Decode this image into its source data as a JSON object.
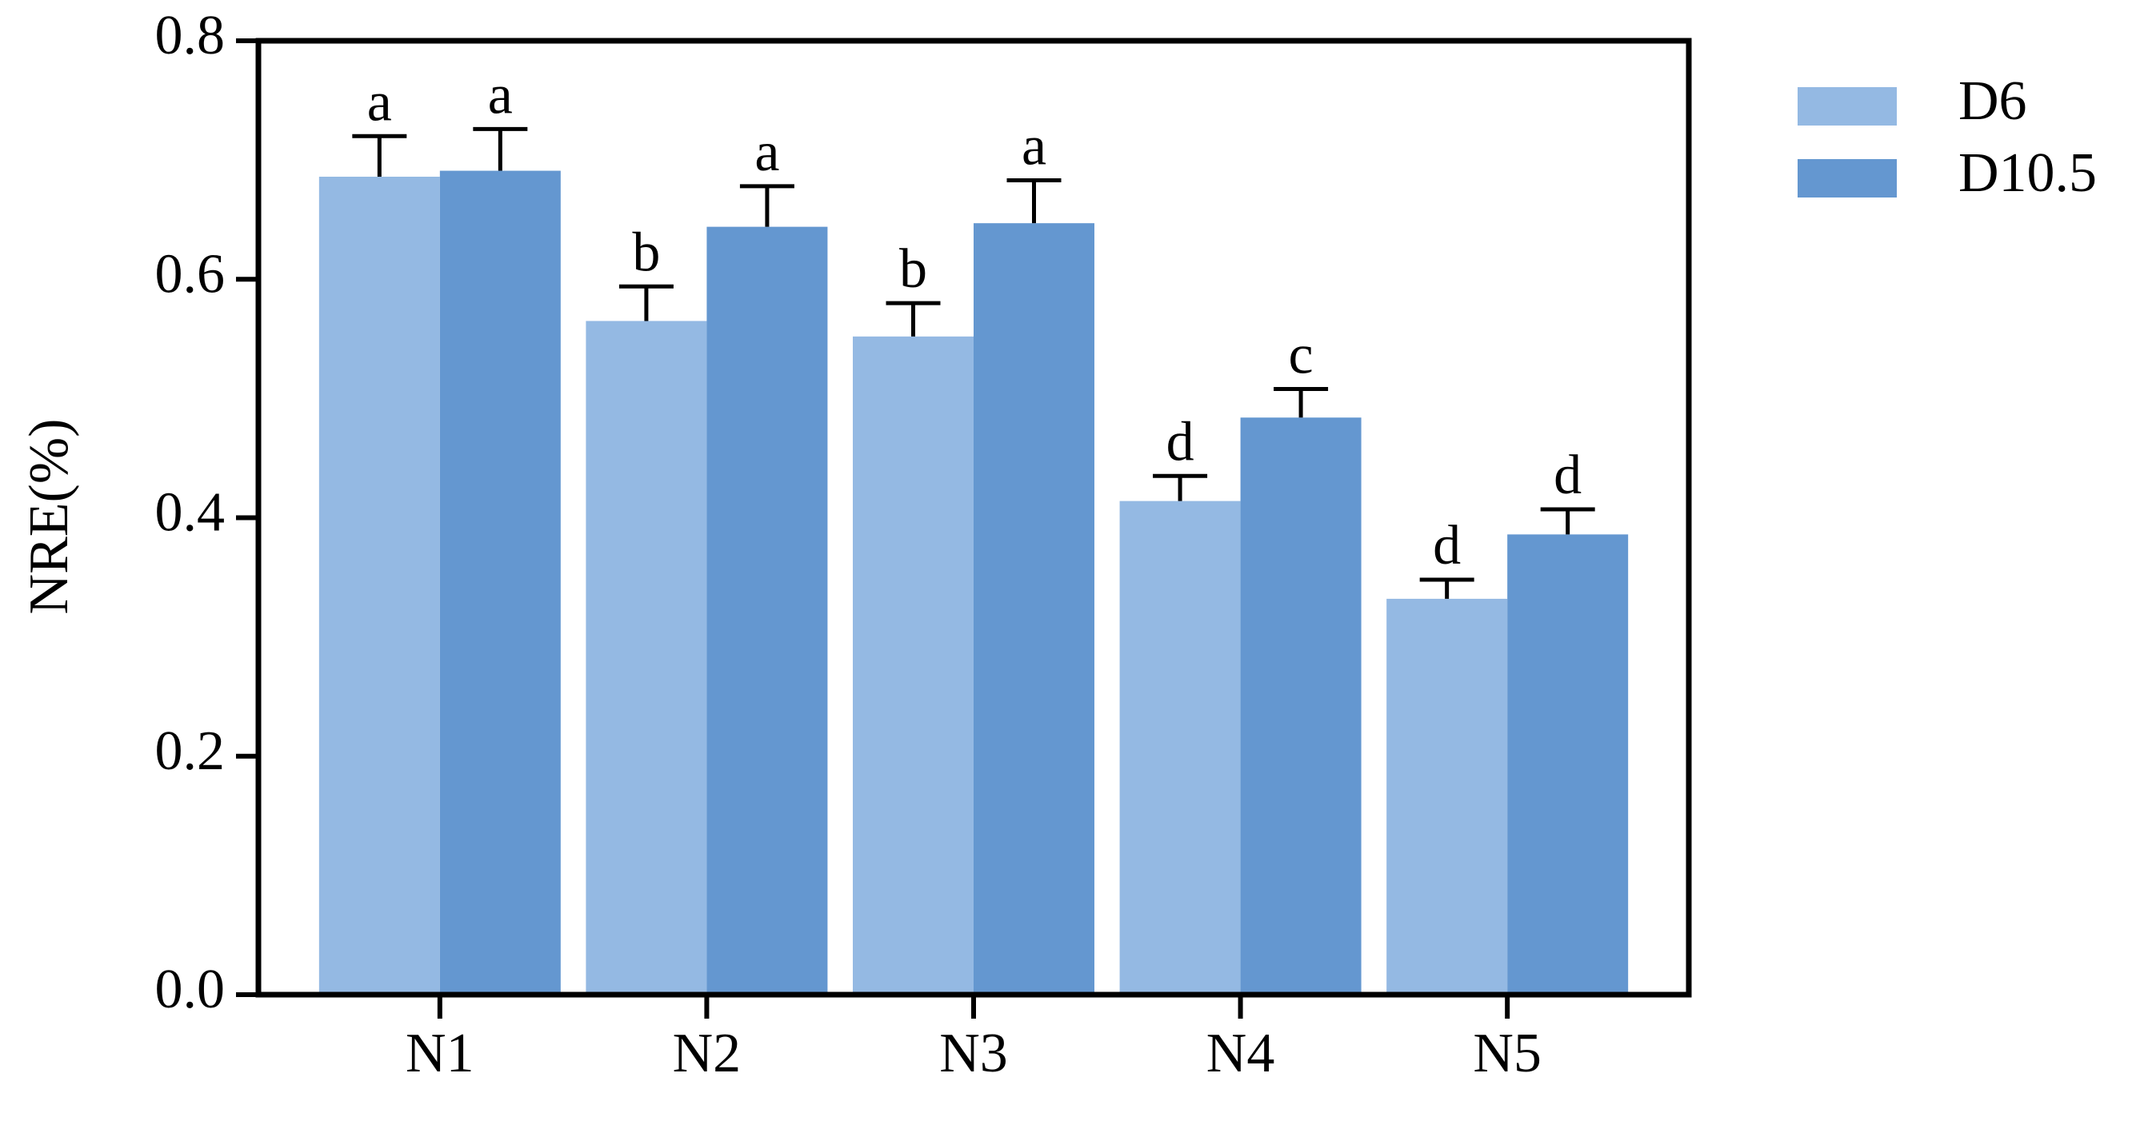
{
  "chart_data": {
    "type": "bar",
    "y_label": "NRE(%)",
    "categories": [
      "N1",
      "N2",
      "N3",
      "N4",
      "N5"
    ],
    "series": [
      {
        "name": "D6",
        "color": "#94b9e3",
        "values": [
          0.686,
          0.565,
          0.552,
          0.414,
          0.332
        ],
        "errors": [
          0.034,
          0.029,
          0.028,
          0.021,
          0.016
        ],
        "annotations": [
          "a",
          "b",
          "b",
          "d",
          "d"
        ]
      },
      {
        "name": "D10.5",
        "color": "#6497d0",
        "values": [
          0.691,
          0.644,
          0.647,
          0.484,
          0.386
        ],
        "errors": [
          0.035,
          0.034,
          0.036,
          0.024,
          0.021
        ],
        "annotations": [
          "a",
          "a",
          "a",
          "c",
          "d"
        ]
      }
    ],
    "ylim": [
      0,
      0.8
    ],
    "yticks": [
      {
        "value": 0,
        "label": "0.0"
      },
      {
        "value": 0.2,
        "label": "0.2"
      },
      {
        "value": 0.4,
        "label": "0.4"
      },
      {
        "value": 0.6,
        "label": "0.6"
      },
      {
        "value": 0.8,
        "label": "0.8"
      }
    ],
    "legend": "right"
  }
}
